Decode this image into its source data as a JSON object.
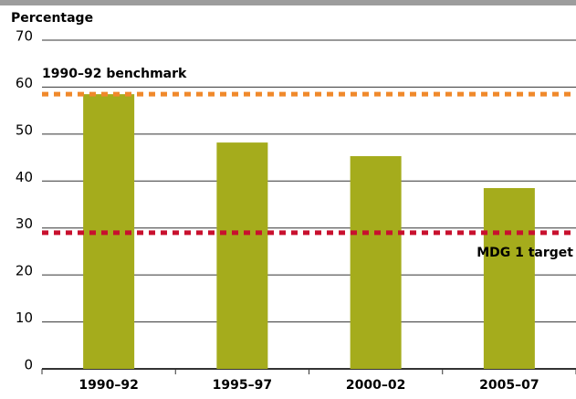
{
  "chart_data": {
    "type": "bar",
    "y_label": "Percentage",
    "categories": [
      "1990–92",
      "1995–97",
      "2000–02",
      "2005–07"
    ],
    "values": [
      58.5,
      48.2,
      45.3,
      38.5
    ],
    "color": "#a5ac1c",
    "ylim": [
      0,
      70
    ],
    "yticks": [
      0,
      10,
      20,
      30,
      40,
      50,
      60,
      70
    ],
    "grid": true,
    "reference_lines": [
      {
        "label": "1990–92 benchmark",
        "value": 58.5,
        "color": "#f0892b"
      },
      {
        "label": "MDG 1 target",
        "value": 29,
        "color": "#c8102e"
      }
    ]
  }
}
